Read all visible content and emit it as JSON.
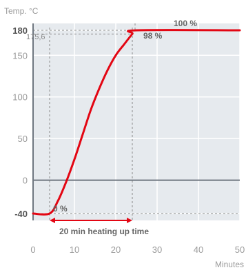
{
  "chart_data": {
    "type": "line",
    "title": "",
    "ylabel": "Temp. °C",
    "xlabel": "Minutes",
    "xlim": [
      0,
      50
    ],
    "ylim": [
      -40,
      180
    ],
    "grid": true,
    "x_ticks": [
      {
        "value": 0,
        "label": "0"
      },
      {
        "value": 10,
        "label": "10"
      },
      {
        "value": 20,
        "label": "20"
      },
      {
        "value": 30,
        "label": "30"
      },
      {
        "value": 40,
        "label": "40"
      },
      {
        "value": 50,
        "label": "50"
      }
    ],
    "y_ticks": [
      {
        "value": 180,
        "label": "180",
        "bold": true
      },
      {
        "value": 150,
        "label": "150",
        "bold": false
      },
      {
        "value": 100,
        "label": "100",
        "bold": false
      },
      {
        "value": 50,
        "label": "50",
        "bold": false
      },
      {
        "value": 0,
        "label": "0",
        "bold": false
      },
      {
        "value": -40,
        "label": "-40",
        "bold": true
      }
    ],
    "series": [
      {
        "color": "#e30613",
        "points": [
          [
            0,
            -40
          ],
          [
            4,
            -40
          ],
          [
            6,
            -25
          ],
          [
            8,
            -2
          ],
          [
            10,
            25
          ],
          [
            12,
            55
          ],
          [
            14,
            85
          ],
          [
            16,
            110
          ],
          [
            18,
            132
          ],
          [
            20,
            150
          ],
          [
            22,
            163
          ],
          [
            24,
            175.6
          ],
          [
            25,
            180
          ],
          [
            50,
            180
          ]
        ]
      }
    ],
    "annotations": {
      "y_reference_label": "175,6",
      "y_reference_value": 175.6,
      "label_100": "100 %",
      "label_98": "98 %",
      "label_0": "0 %",
      "heating_label": "20 min heating up time",
      "heating_start": 4,
      "heating_end": 24,
      "ref_x_start": 4,
      "ref_x_end": 24
    }
  }
}
